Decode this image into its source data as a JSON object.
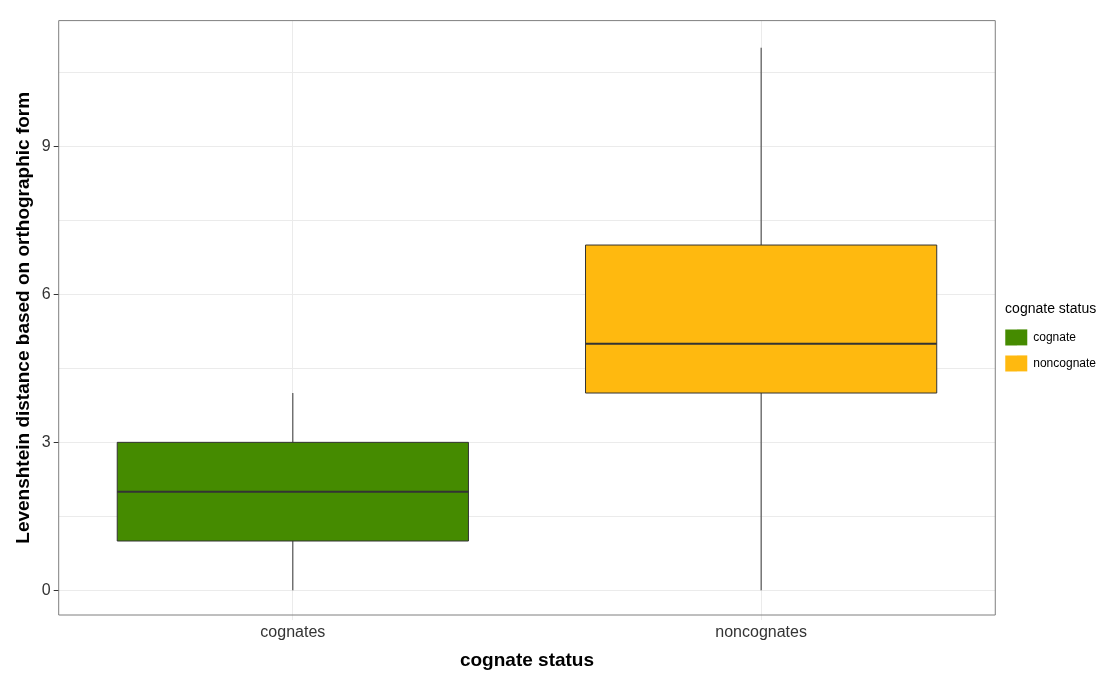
{
  "chart_data": {
    "type": "box",
    "xlabel": "cognate status",
    "ylabel": "Levenshtein distance based on orthographic form",
    "legend_title": "cognate status",
    "categories": [
      "cognates",
      "noncognates"
    ],
    "series": [
      {
        "name": "cognate",
        "color": "#458b00",
        "boxes": [
          {
            "low": 0,
            "q1": 1,
            "median": 2,
            "q3": 3,
            "high": 4
          },
          null
        ]
      },
      {
        "name": "noncognate",
        "color": "#ffb90f",
        "boxes": [
          null,
          {
            "low": 0,
            "q1": 4,
            "median": 5,
            "q3": 7,
            "high": 11
          }
        ]
      }
    ],
    "ylim": [
      -0.5,
      11.55
    ],
    "yticks": [
      0,
      {
        "value": 1.5,
        "label": null
      },
      3,
      {
        "value": 4.5,
        "label": null
      },
      6,
      {
        "value": 7.5,
        "label": null
      },
      9,
      {
        "value": 10.5,
        "label": null
      }
    ],
    "grid": true,
    "legend": "right"
  }
}
